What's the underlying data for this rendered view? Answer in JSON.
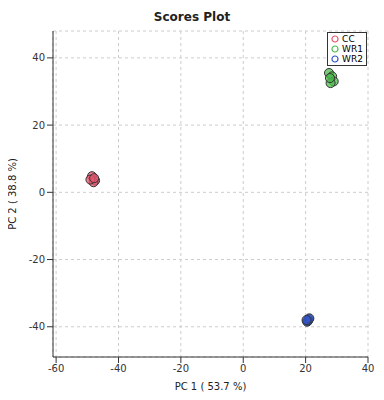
{
  "chart_data": {
    "type": "scatter",
    "title": "Scores Plot",
    "x_label": "PC 1 ( 53.7 %)",
    "y_label": "PC 2 ( 38.8 %)",
    "xlim": [
      -61,
      40
    ],
    "ylim": [
      -49,
      48
    ],
    "xticks": [
      -60,
      -40,
      -20,
      0,
      20,
      40
    ],
    "yticks": [
      -40,
      -20,
      0,
      20,
      40
    ],
    "grid": true,
    "legend": "top-right",
    "marker": "circle",
    "series": [
      {
        "name": "CC",
        "color": "#e8556e",
        "values": [
          [
            -48.5,
            4.8
          ],
          [
            -47.5,
            3.5
          ],
          [
            -48.0,
            3.0
          ],
          [
            -49.0,
            3.8
          ],
          [
            -47.8,
            4.2
          ]
        ]
      },
      {
        "name": "WR1",
        "color": "#4dbd4d",
        "values": [
          [
            27.5,
            35.5
          ],
          [
            28.5,
            34.5
          ],
          [
            29.0,
            33.0
          ],
          [
            28.0,
            32.5
          ],
          [
            27.8,
            34.0
          ]
        ]
      },
      {
        "name": "WR2",
        "color": "#3355cc",
        "values": [
          [
            20.5,
            -38.5
          ],
          [
            21.0,
            -37.8
          ],
          [
            20.8,
            -38.2
          ],
          [
            21.2,
            -37.5
          ],
          [
            20.3,
            -38.0
          ]
        ]
      }
    ]
  }
}
